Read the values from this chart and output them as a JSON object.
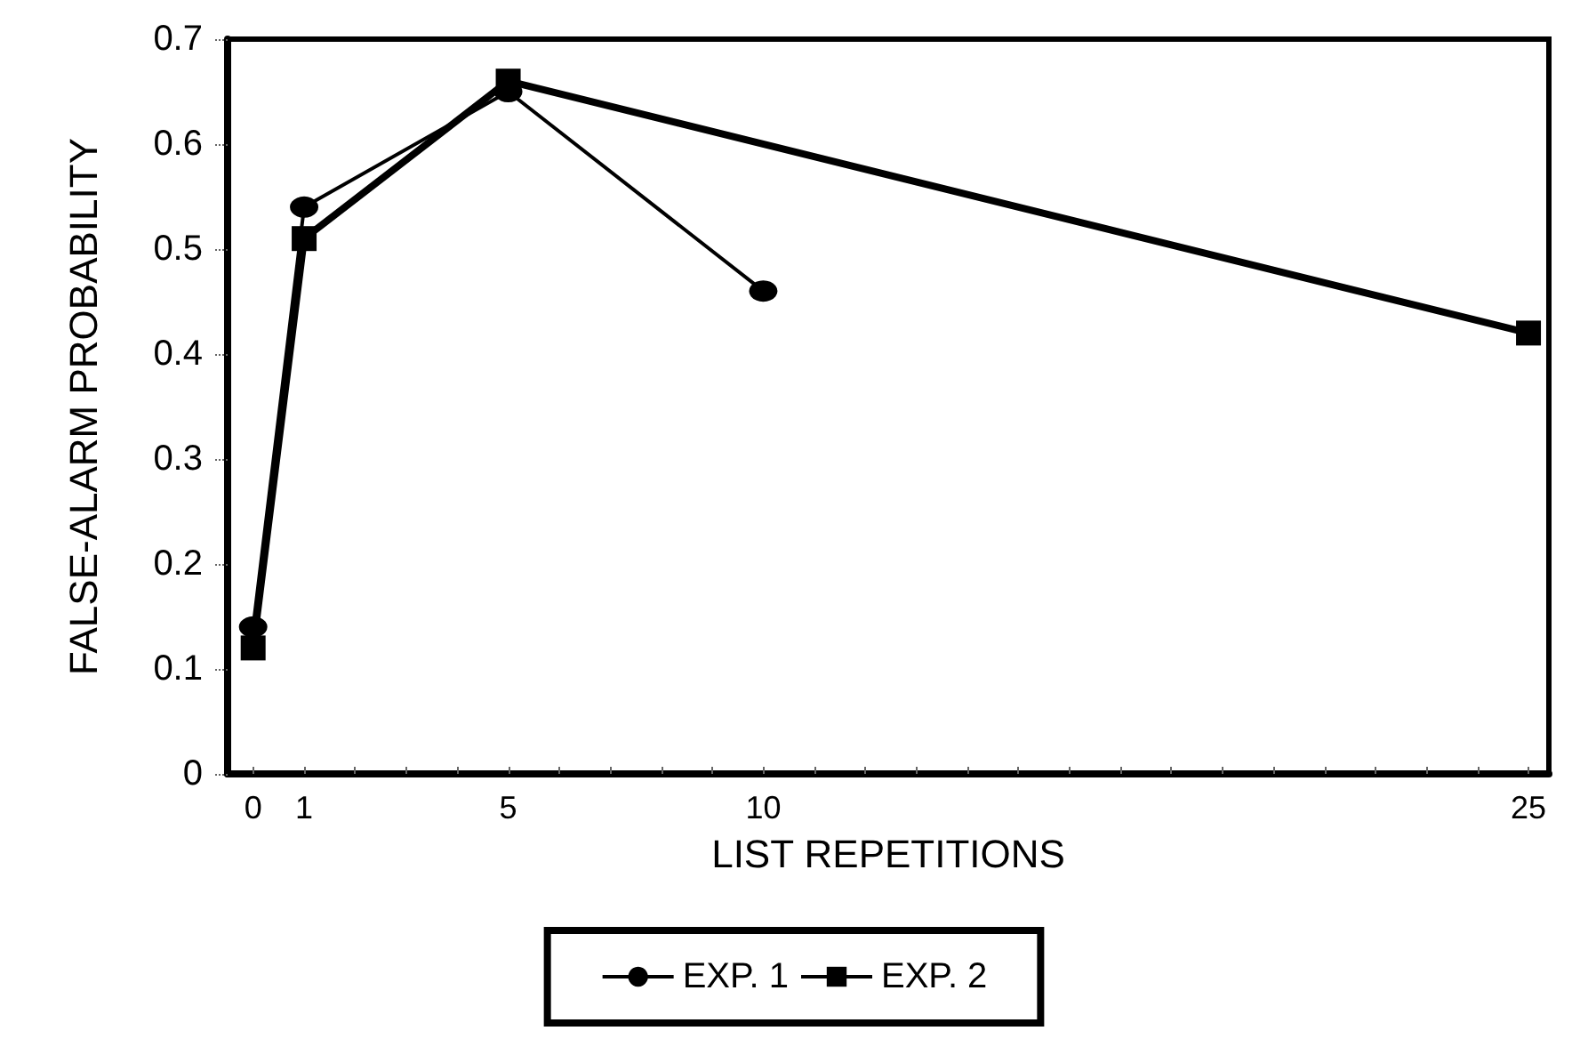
{
  "chart_data": {
    "type": "line",
    "xlabel": "LIST REPETITIONS",
    "ylabel": "FALSE-ALARM PROBABILITY",
    "xlim": [
      -0.5,
      25.4
    ],
    "xticks": [
      0,
      1,
      {
        "value": 2,
        "label": null
      },
      {
        "value": 3,
        "label": null
      },
      {
        "value": 4,
        "label": null
      },
      5,
      {
        "value": 6,
        "label": null
      },
      {
        "value": 7,
        "label": null
      },
      {
        "value": 8,
        "label": null
      },
      {
        "value": 9,
        "label": null
      },
      10,
      {
        "value": 11,
        "label": null
      },
      {
        "value": 12,
        "label": null
      },
      {
        "value": 13,
        "label": null
      },
      {
        "value": 14,
        "label": null
      },
      {
        "value": 15,
        "label": null
      },
      {
        "value": 16,
        "label": null
      },
      {
        "value": 17,
        "label": null
      },
      {
        "value": 18,
        "label": null
      },
      {
        "value": 19,
        "label": null
      },
      {
        "value": 20,
        "label": null
      },
      {
        "value": 21,
        "label": null
      },
      {
        "value": 22,
        "label": null
      },
      {
        "value": 23,
        "label": null
      },
      {
        "value": 24,
        "label": null
      },
      25
    ],
    "ylim": [
      0,
      0.7
    ],
    "yticks": [
      0,
      0.1,
      0.2,
      0.3,
      0.4,
      0.5,
      0.6,
      0.7
    ],
    "grid": false,
    "legend": "bottom",
    "series": [
      {
        "name": "EXP. 1",
        "color": "#000000",
        "marker": "circle",
        "x": [
          0,
          1,
          5,
          10
        ],
        "values": [
          0.14,
          0.54,
          0.65,
          0.46
        ]
      },
      {
        "name": "EXP. 2",
        "color": "#000000",
        "marker": "square",
        "x": [
          0,
          1,
          5,
          25
        ],
        "values": [
          0.12,
          0.51,
          0.66,
          0.42
        ]
      }
    ]
  }
}
